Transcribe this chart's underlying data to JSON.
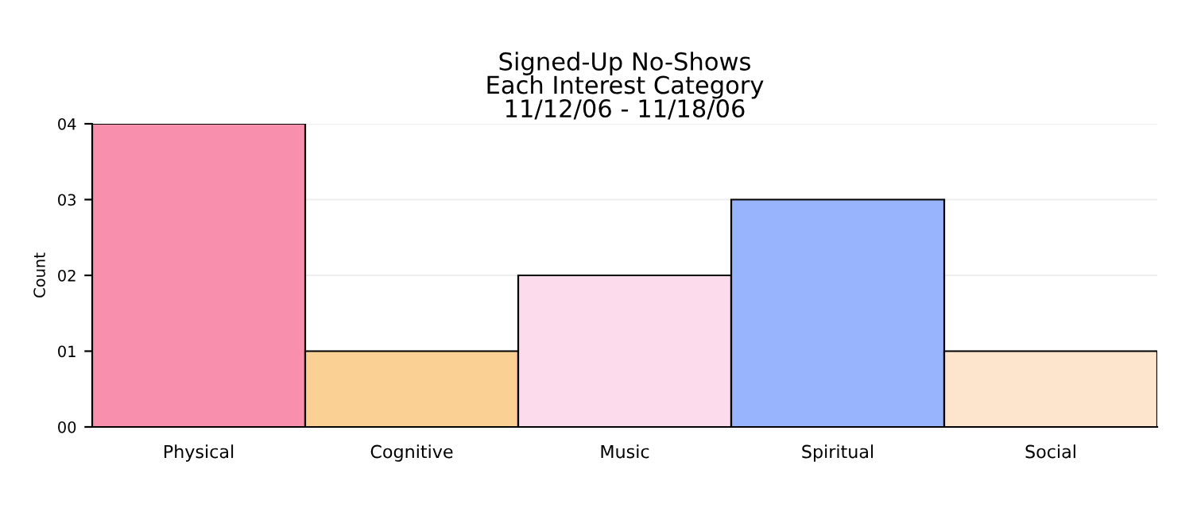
{
  "chart_data": {
    "type": "bar",
    "title": "Signed-Up No-Shows\nEach Interest Category\n11/12/06 - 11/18/06",
    "ylabel": "Count",
    "categories": [
      "Physical",
      "Cognitive",
      "Music",
      "Spiritual",
      "Social"
    ],
    "values": [
      4,
      1,
      2,
      3,
      1
    ],
    "colors": [
      "#f78fad",
      "#fad095",
      "#fcdcec",
      "#98b4fc",
      "#fde4cc"
    ],
    "ylim": [
      0,
      4
    ],
    "yticks": [
      {
        "value": 0,
        "label": "00"
      },
      {
        "value": 1,
        "label": "01"
      },
      {
        "value": 2,
        "label": "02"
      },
      {
        "value": 3,
        "label": "03"
      },
      {
        "value": 4,
        "label": "04"
      }
    ],
    "grid": "y"
  }
}
